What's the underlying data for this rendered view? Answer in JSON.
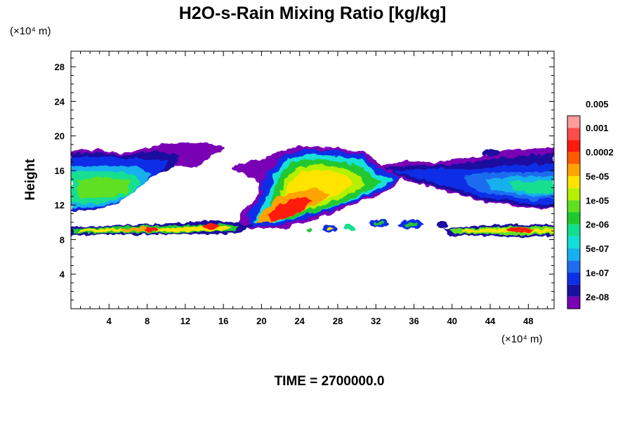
{
  "chart_data": {
    "type": "heatmap",
    "title": "H2O-s-Rain Mixing Ratio [kg/kg]",
    "xlabel": "",
    "ylabel": "Height",
    "x_unit": "(×10⁴ m)",
    "y_unit": "(×10⁴ m)",
    "xlim": [
      0,
      50.7
    ],
    "ylim": [
      0,
      29.8
    ],
    "x_ticks": [
      "4",
      "8",
      "12",
      "16",
      "20",
      "24",
      "28",
      "32",
      "36",
      "40",
      "44",
      "48"
    ],
    "y_ticks": [
      "4",
      "8",
      "12",
      "16",
      "20",
      "24",
      "28"
    ],
    "footer": "TIME = 2700000.0",
    "colorbar": {
      "colors": [
        "#7a00b5",
        "#1a10a0",
        "#0b2fe6",
        "#1e6cf0",
        "#15b0ee",
        "#12e0d8",
        "#12e090",
        "#20c830",
        "#60e020",
        "#b4f000",
        "#ffe400",
        "#ffa400",
        "#ff5a00",
        "#ff1a10",
        "#ff4c4c",
        "#ff9c9c"
      ],
      "labels": [
        "2e-08",
        "1e-07",
        "5e-07",
        "2e-06",
        "1e-05",
        "5e-05",
        "0.0002",
        "0.001",
        "0.005"
      ]
    },
    "regions": [
      {
        "name": "upper-left-anvil",
        "x": [
          0,
          16
        ],
        "y": [
          12,
          18.5
        ],
        "core": "green",
        "max": "cyan-green"
      },
      {
        "name": "central-convective-core",
        "x": [
          17,
          35
        ],
        "y": [
          10,
          20.5
        ],
        "core": "yellow-red",
        "max": "red"
      },
      {
        "name": "upper-right-anvil",
        "x": [
          35,
          50.7
        ],
        "y": [
          12,
          18.5
        ],
        "core": "blue",
        "max": "green"
      },
      {
        "name": "low-level-band",
        "x": [
          0,
          50.7
        ],
        "y": [
          8.5,
          10
        ],
        "core": "orange-red",
        "max": "red"
      }
    ]
  }
}
